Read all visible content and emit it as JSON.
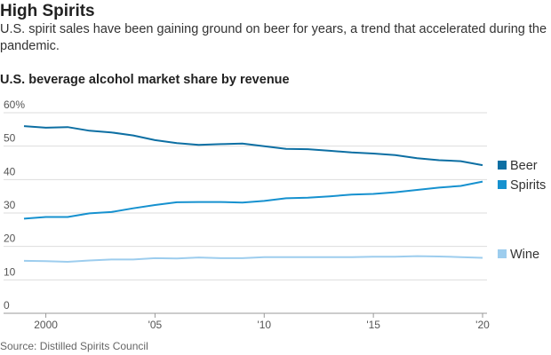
{
  "header": {
    "title": "High Spirits",
    "subtitle": "U.S. spirit sales have been gaining ground on beer for years, a trend that accelerated during the pandemic."
  },
  "source": "Source: Distilled Spirits Council",
  "chart_data": {
    "type": "line",
    "title": "U.S. beverage alcohol market share by revenue",
    "xlabel": "",
    "ylabel": "",
    "ylim": [
      0,
      60
    ],
    "xlim": [
      1999,
      2020
    ],
    "y_ticks": [
      "0",
      "10",
      "20",
      "30",
      "40",
      "50",
      "60%"
    ],
    "y_tick_values": [
      0,
      10,
      20,
      30,
      40,
      50,
      60
    ],
    "x_ticks": [
      "2000",
      "'05",
      "'10",
      "'15",
      "'20"
    ],
    "x_tick_values": [
      2000,
      2005,
      2010,
      2015,
      2020
    ],
    "grid": true,
    "legend": "right",
    "x": [
      1999,
      2000,
      2001,
      2002,
      2003,
      2004,
      2005,
      2006,
      2007,
      2008,
      2009,
      2010,
      2011,
      2012,
      2013,
      2014,
      2015,
      2016,
      2017,
      2018,
      2019,
      2020
    ],
    "series": [
      {
        "name": "Beer",
        "color": "#0d6fa3",
        "values": [
          56,
          55.5,
          55.7,
          54.6,
          54.1,
          53.2,
          51.8,
          50.9,
          50.4,
          50.6,
          50.8,
          50,
          49.2,
          49.1,
          48.6,
          48.1,
          47.8,
          47.3,
          46.4,
          45.8,
          45.5,
          44.3
        ]
      },
      {
        "name": "Spirits",
        "color": "#1691cf",
        "values": [
          28.3,
          28.8,
          28.8,
          29.9,
          30.3,
          31.4,
          32.4,
          33.2,
          33.3,
          33.3,
          33.1,
          33.6,
          34.4,
          34.6,
          35,
          35.5,
          35.7,
          36.2,
          36.9,
          37.6,
          38.1,
          39.4
        ]
      },
      {
        "name": "Wine",
        "color": "#9dcdee",
        "values": [
          15.7,
          15.6,
          15.4,
          15.8,
          16.1,
          16.1,
          16.5,
          16.4,
          16.7,
          16.5,
          16.5,
          16.8,
          16.8,
          16.8,
          16.8,
          16.8,
          16.9,
          16.9,
          17.1,
          17,
          16.8,
          16.6
        ]
      }
    ]
  }
}
